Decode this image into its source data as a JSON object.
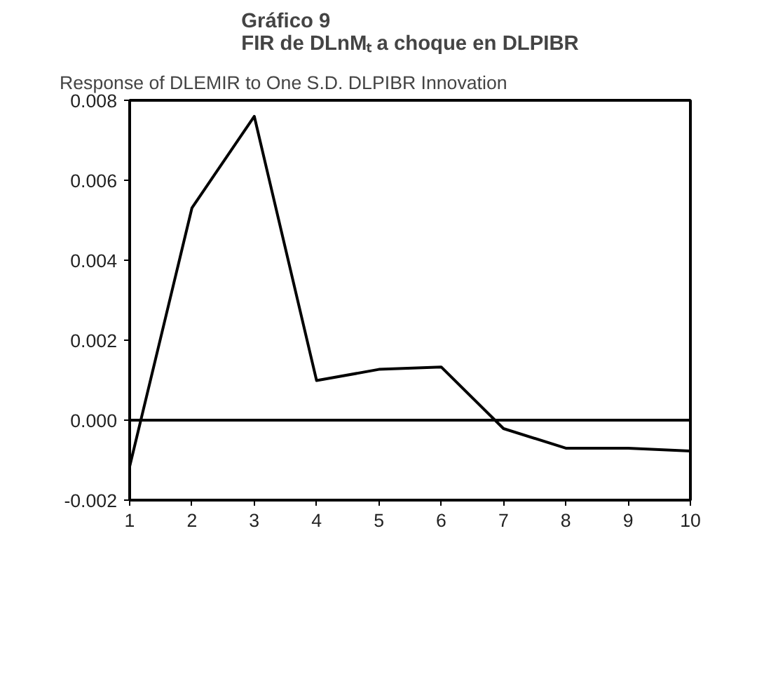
{
  "chart_data": {
    "type": "line",
    "title": "Gráfico 9\nFIR de DLnMₜ a choque en DLPIBR",
    "subtitle": "Response of DLEMIR to One S.D. DLPIBR Innovation",
    "x": [
      1,
      2,
      3,
      4,
      5,
      6,
      7,
      8,
      9,
      10
    ],
    "series": [
      {
        "color": "#000000",
        "values": [
          -0.00116,
          0.00531,
          0.0076,
          0.00099,
          0.00127,
          0.00133,
          -0.00021,
          -0.0007,
          -0.0007,
          -0.00077
        ]
      }
    ],
    "xlim": [
      1,
      10
    ],
    "xticks": [
      1,
      2,
      3,
      4,
      5,
      6,
      7,
      8,
      9,
      10
    ],
    "ylim": [
      -0.002,
      0.008
    ],
    "yticks": [
      {
        "value": -0.002,
        "label": "-0.002"
      },
      {
        "value": 0,
        "label": "0.000"
      },
      {
        "value": 0.002,
        "label": "0.002"
      },
      {
        "value": 0.004,
        "label": "0.004"
      },
      {
        "value": 0.006,
        "label": "0.006"
      },
      {
        "value": 0.008,
        "label": "0.008"
      }
    ],
    "ref_lines": [
      {
        "axis": "y",
        "value": 0,
        "color": "#000000"
      }
    ],
    "grid": false,
    "marker": "none",
    "line_style": "solid"
  }
}
